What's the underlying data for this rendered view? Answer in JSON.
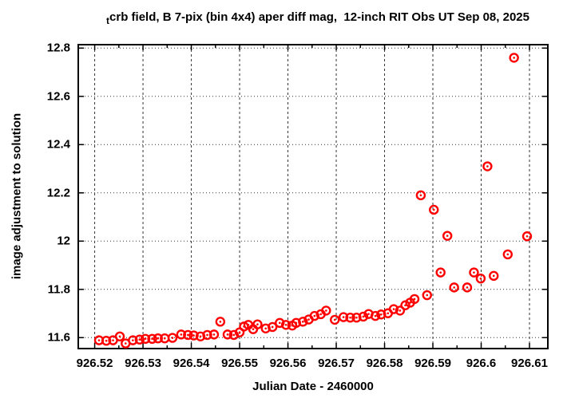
{
  "chart_data": {
    "type": "scatter",
    "title": {
      "subscript_prefix": "t",
      "text": "crb field, B 7-pix (bin 4x4) aper diff mag,  12-inch RIT Obs UT Sep 08, 2025"
    },
    "xlabel": "Julian Date - 2460000",
    "ylabel": "image adjustment to solution",
    "xlim": [
      926.5166,
      926.6138
    ],
    "ylim": [
      11.5547,
      12.8142
    ],
    "x_ticks": {
      "values": [
        926.52,
        926.53,
        926.54,
        926.55,
        926.56,
        926.57,
        926.58,
        926.59,
        926.6,
        926.61
      ],
      "labels": [
        "926.52",
        "926.53",
        "926.54",
        "926.55",
        "926.56",
        "926.57",
        "926.58",
        "926.59",
        "926.6",
        "926.61"
      ],
      "minor_step": 0.005
    },
    "y_ticks": {
      "values": [
        11.6,
        11.8,
        12.0,
        12.2,
        12.4,
        12.6,
        12.8
      ],
      "labels": [
        "11.6",
        "11.8",
        "12",
        "12.2",
        "12.4",
        "12.6",
        "12.8"
      ],
      "minor_step": 0
    },
    "grid": {
      "visible": true,
      "horizontal_style": "dotted",
      "vertical_style": "dashed"
    },
    "marker": {
      "shape": "open-circle-with-dot",
      "color": "#ff0000"
    },
    "series": [
      {
        "points": [
          [
            926.5209,
            11.589
          ],
          [
            926.5224,
            11.587
          ],
          [
            926.5238,
            11.589
          ],
          [
            926.5252,
            11.605
          ],
          [
            926.5264,
            11.576
          ],
          [
            926.5279,
            11.589
          ],
          [
            926.5293,
            11.592
          ],
          [
            926.5305,
            11.595
          ],
          [
            926.5319,
            11.595
          ],
          [
            926.5331,
            11.597
          ],
          [
            926.5345,
            11.597
          ],
          [
            926.5361,
            11.599
          ],
          [
            926.5379,
            11.613
          ],
          [
            926.5393,
            11.611
          ],
          [
            926.5405,
            11.609
          ],
          [
            926.5419,
            11.605
          ],
          [
            926.5433,
            11.611
          ],
          [
            926.5447,
            11.613
          ],
          [
            926.546,
            11.666
          ],
          [
            926.5475,
            11.613
          ],
          [
            926.5488,
            11.611
          ],
          [
            926.55,
            11.622
          ],
          [
            926.5509,
            11.646
          ],
          [
            926.5518,
            11.653
          ],
          [
            926.5528,
            11.635
          ],
          [
            926.5537,
            11.655
          ],
          [
            926.5554,
            11.638
          ],
          [
            926.5568,
            11.644
          ],
          [
            926.5583,
            11.661
          ],
          [
            926.5596,
            11.653
          ],
          [
            926.5609,
            11.65
          ],
          [
            926.5617,
            11.661
          ],
          [
            926.5631,
            11.666
          ],
          [
            926.5643,
            11.675
          ],
          [
            926.5655,
            11.69
          ],
          [
            926.5668,
            11.697
          ],
          [
            926.5679,
            11.712
          ],
          [
            926.5697,
            11.674
          ],
          [
            926.5715,
            11.685
          ],
          [
            926.5729,
            11.683
          ],
          [
            926.5742,
            11.683
          ],
          [
            926.5756,
            11.687
          ],
          [
            926.5767,
            11.698
          ],
          [
            926.5781,
            11.69
          ],
          [
            926.5793,
            11.696
          ],
          [
            926.5807,
            11.701
          ],
          [
            926.5819,
            11.718
          ],
          [
            926.5832,
            11.712
          ],
          [
            926.5843,
            11.734
          ],
          [
            926.5853,
            11.745
          ],
          [
            926.5862,
            11.76
          ],
          [
            926.5875,
            12.19
          ],
          [
            926.5888,
            11.776
          ],
          [
            926.5902,
            12.13
          ],
          [
            926.5916,
            11.87
          ],
          [
            926.593,
            12.022
          ],
          [
            926.5944,
            11.808
          ],
          [
            926.5971,
            11.808
          ],
          [
            926.5985,
            11.87
          ],
          [
            926.5999,
            11.845
          ],
          [
            926.6013,
            12.31
          ],
          [
            926.6026,
            11.856
          ],
          [
            926.6055,
            11.945
          ],
          [
            926.6068,
            12.76
          ],
          [
            926.6095,
            12.02
          ]
        ]
      }
    ]
  }
}
